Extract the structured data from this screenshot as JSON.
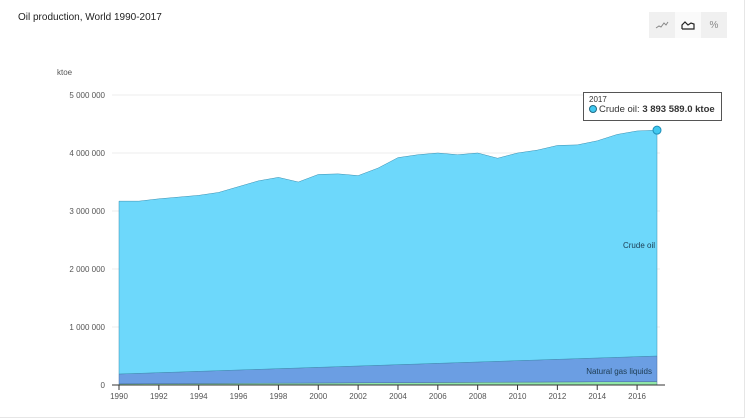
{
  "title": "Oil production, World 1990-2017",
  "buttons": [
    {
      "name": "line-chart",
      "label": "line-icon",
      "active": false
    },
    {
      "name": "area-chart",
      "label": "area-icon",
      "active": true
    },
    {
      "name": "percent",
      "label": "%",
      "active": false
    }
  ],
  "tooltip": {
    "year": "2017",
    "series": "Crude oil:",
    "value": "3 893 589.0 ktoe"
  },
  "chart_data": {
    "type": "area",
    "stacked": true,
    "title": "Oil production, World 1990-2017",
    "ylabel": "ktoe",
    "ylim": [
      0,
      5000000
    ],
    "yticks": [
      "0",
      "1 000 000",
      "2 000 000",
      "3 000 000",
      "4 000 000",
      "5 000 000"
    ],
    "xticks": [
      "1990",
      "1992",
      "1994",
      "1996",
      "1998",
      "2000",
      "2002",
      "2004",
      "2006",
      "2008",
      "2010",
      "2012",
      "2014",
      "2016"
    ],
    "x": [
      1990,
      1991,
      1992,
      1993,
      1994,
      1995,
      1996,
      1997,
      1998,
      1999,
      2000,
      2001,
      2002,
      2003,
      2004,
      2005,
      2006,
      2007,
      2008,
      2009,
      2010,
      2011,
      2012,
      2013,
      2014,
      2015,
      2016,
      2017
    ],
    "series": [
      {
        "key": "other",
        "name": "",
        "color": "#90e6a8",
        "values": [
          20000,
          21000,
          23000,
          24000,
          26000,
          27000,
          29000,
          30000,
          32000,
          33000,
          35000,
          36000,
          38000,
          39000,
          41000,
          42000,
          44000,
          45000,
          47000,
          48000,
          50000,
          51000,
          53000,
          54000,
          56000,
          57000,
          59000,
          60000
        ]
      },
      {
        "key": "ngl",
        "name": "Natural gas liquids",
        "color": "#6b9ee3",
        "values": [
          170000,
          180000,
          190000,
          200000,
          210000,
          220000,
          230000,
          240000,
          250000,
          260000,
          270000,
          280000,
          290000,
          300000,
          310000,
          320000,
          330000,
          340000,
          350000,
          360000,
          370000,
          380000,
          390000,
          400000,
          410000,
          420000,
          430000,
          440000
        ]
      },
      {
        "key": "crude",
        "name": "Crude oil",
        "color": "#6dd8fb",
        "values": [
          2980000,
          2969000,
          2997000,
          3016000,
          3034000,
          3073000,
          3161000,
          3250000,
          3298000,
          3207000,
          3325000,
          3324000,
          3282000,
          3401000,
          3569000,
          3608000,
          3626000,
          3585000,
          3603000,
          3502000,
          3580000,
          3619000,
          3687000,
          3686000,
          3744000,
          3843000,
          3891000,
          3893589
        ]
      }
    ]
  }
}
